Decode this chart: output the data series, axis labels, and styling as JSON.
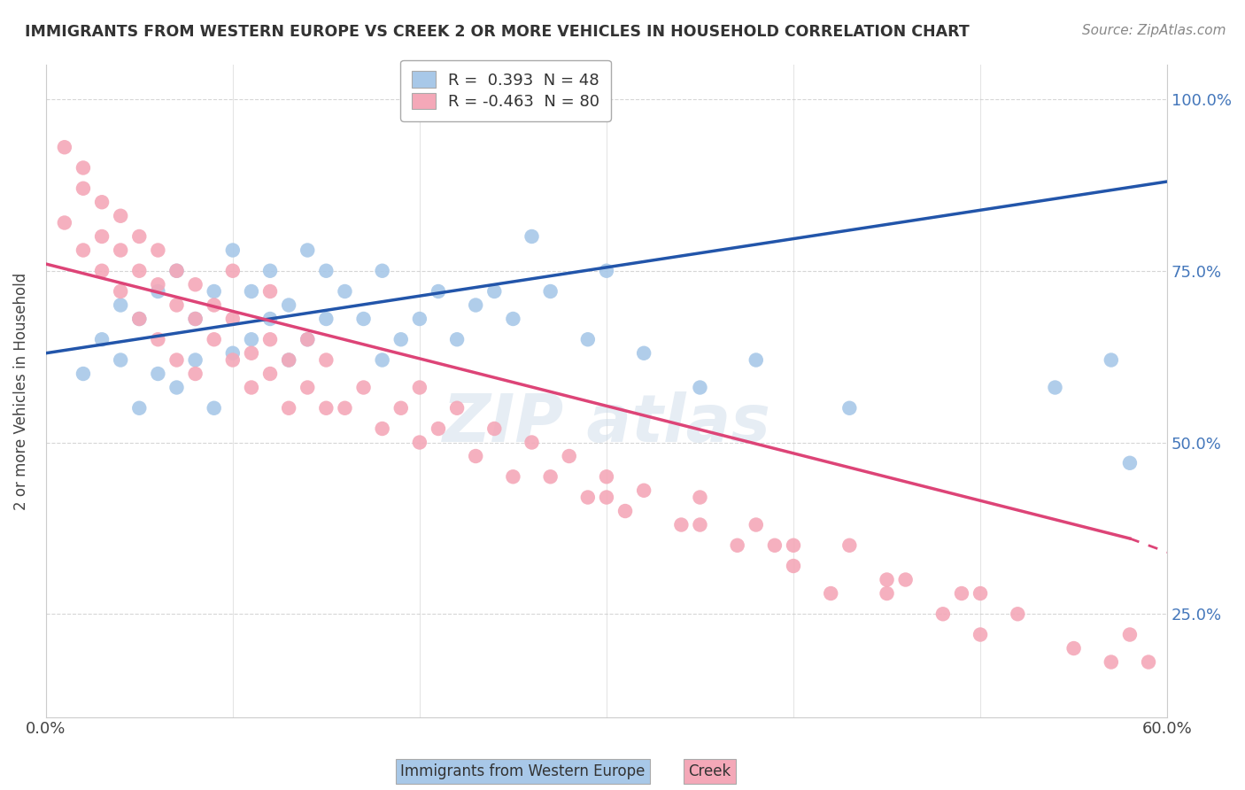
{
  "title": "IMMIGRANTS FROM WESTERN EUROPE VS CREEK 2 OR MORE VEHICLES IN HOUSEHOLD CORRELATION CHART",
  "source": "Source: ZipAtlas.com",
  "xlabel_blue": "Immigrants from Western Europe",
  "xlabel_pink": "Creek",
  "ylabel": "2 or more Vehicles in Household",
  "xlim": [
    0.0,
    0.6
  ],
  "ylim": [
    0.1,
    1.05
  ],
  "xticks": [
    0.0,
    0.1,
    0.2,
    0.3,
    0.4,
    0.5,
    0.6
  ],
  "xticklabels": [
    "0.0%",
    "",
    "",
    "",
    "",
    "",
    "60.0%"
  ],
  "yticks": [
    0.25,
    0.5,
    0.75,
    1.0
  ],
  "yticklabels": [
    "25.0%",
    "50.0%",
    "75.0%",
    "100.0%"
  ],
  "legend_blue_r": "0.393",
  "legend_blue_n": "48",
  "legend_pink_r": "-0.463",
  "legend_pink_n": "80",
  "blue_color": "#a8c8e8",
  "pink_color": "#f4a8b8",
  "blue_line_color": "#2255aa",
  "pink_line_color": "#dd4477",
  "blue_scatter_x": [
    0.02,
    0.03,
    0.04,
    0.04,
    0.05,
    0.05,
    0.06,
    0.06,
    0.07,
    0.07,
    0.08,
    0.08,
    0.09,
    0.09,
    0.1,
    0.1,
    0.11,
    0.11,
    0.12,
    0.12,
    0.13,
    0.13,
    0.14,
    0.14,
    0.15,
    0.15,
    0.16,
    0.17,
    0.18,
    0.18,
    0.19,
    0.2,
    0.21,
    0.22,
    0.23,
    0.24,
    0.25,
    0.26,
    0.27,
    0.29,
    0.3,
    0.32,
    0.35,
    0.38,
    0.43,
    0.58,
    0.54,
    0.57
  ],
  "blue_scatter_y": [
    0.6,
    0.65,
    0.62,
    0.7,
    0.55,
    0.68,
    0.6,
    0.72,
    0.58,
    0.75,
    0.62,
    0.68,
    0.55,
    0.72,
    0.63,
    0.78,
    0.65,
    0.72,
    0.68,
    0.75,
    0.62,
    0.7,
    0.65,
    0.78,
    0.68,
    0.75,
    0.72,
    0.68,
    0.62,
    0.75,
    0.65,
    0.68,
    0.72,
    0.65,
    0.7,
    0.72,
    0.68,
    0.8,
    0.72,
    0.65,
    0.75,
    0.63,
    0.58,
    0.62,
    0.55,
    0.47,
    0.58,
    0.62
  ],
  "pink_scatter_x": [
    0.01,
    0.01,
    0.02,
    0.02,
    0.02,
    0.03,
    0.03,
    0.03,
    0.04,
    0.04,
    0.04,
    0.05,
    0.05,
    0.05,
    0.06,
    0.06,
    0.06,
    0.07,
    0.07,
    0.07,
    0.08,
    0.08,
    0.08,
    0.09,
    0.09,
    0.1,
    0.1,
    0.1,
    0.11,
    0.11,
    0.12,
    0.12,
    0.12,
    0.13,
    0.13,
    0.14,
    0.14,
    0.15,
    0.15,
    0.16,
    0.17,
    0.18,
    0.19,
    0.2,
    0.2,
    0.21,
    0.22,
    0.23,
    0.24,
    0.25,
    0.26,
    0.27,
    0.28,
    0.29,
    0.3,
    0.31,
    0.32,
    0.34,
    0.35,
    0.37,
    0.38,
    0.39,
    0.4,
    0.42,
    0.43,
    0.45,
    0.46,
    0.48,
    0.49,
    0.5,
    0.52,
    0.55,
    0.57,
    0.58,
    0.59,
    0.3,
    0.35,
    0.4,
    0.45,
    0.5
  ],
  "pink_scatter_y": [
    0.82,
    0.93,
    0.87,
    0.78,
    0.9,
    0.8,
    0.85,
    0.75,
    0.78,
    0.83,
    0.72,
    0.75,
    0.8,
    0.68,
    0.73,
    0.78,
    0.65,
    0.7,
    0.75,
    0.62,
    0.68,
    0.73,
    0.6,
    0.65,
    0.7,
    0.62,
    0.68,
    0.75,
    0.58,
    0.63,
    0.6,
    0.65,
    0.72,
    0.55,
    0.62,
    0.58,
    0.65,
    0.55,
    0.62,
    0.55,
    0.58,
    0.52,
    0.55,
    0.5,
    0.58,
    0.52,
    0.55,
    0.48,
    0.52,
    0.45,
    0.5,
    0.45,
    0.48,
    0.42,
    0.45,
    0.4,
    0.43,
    0.38,
    0.42,
    0.35,
    0.38,
    0.35,
    0.32,
    0.28,
    0.35,
    0.28,
    0.3,
    0.25,
    0.28,
    0.22,
    0.25,
    0.2,
    0.18,
    0.22,
    0.18,
    0.42,
    0.38,
    0.35,
    0.3,
    0.28
  ]
}
